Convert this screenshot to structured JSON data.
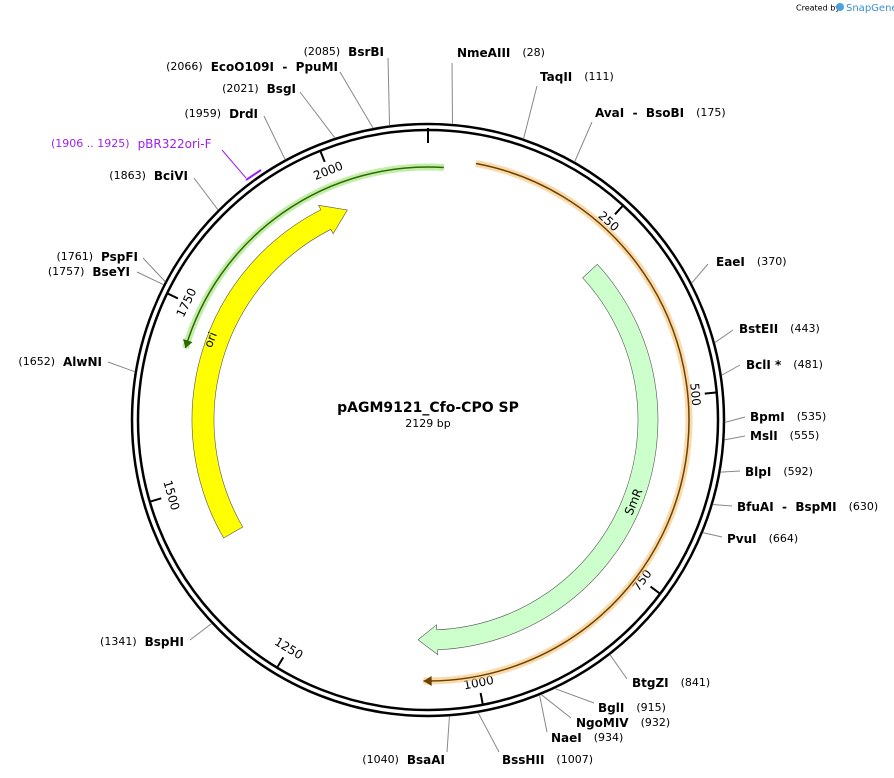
{
  "logo": {
    "prefix": "Created by",
    "brand": "SnapGene"
  },
  "map": {
    "title": "pAGM9121_Cfo-CPO SP",
    "size_label": "2129 bp",
    "size": 2129,
    "ticks": [
      250,
      500,
      750,
      1000,
      1250,
      1500,
      1750,
      2000
    ],
    "enzymes": [
      {
        "name": "NmeAIII",
        "position": 28,
        "label": "(28)"
      },
      {
        "name": "TaqII",
        "position": 111,
        "label": "(111)"
      },
      {
        "name": "AvaI  -  BsoBI",
        "position": 175,
        "label": "(175)"
      },
      {
        "name": "EaeI",
        "position": 370,
        "label": "(370)"
      },
      {
        "name": "BstEII",
        "position": 443,
        "label": "(443)"
      },
      {
        "name": "BclI *",
        "position": 481,
        "label": "(481)"
      },
      {
        "name": "BpmI",
        "position": 535,
        "label": "(535)"
      },
      {
        "name": "MslI",
        "position": 555,
        "label": "(555)"
      },
      {
        "name": "BlpI",
        "position": 592,
        "label": "(592)"
      },
      {
        "name": "BfuAI  -  BspMI",
        "position": 630,
        "label": "(630)"
      },
      {
        "name": "PvuI",
        "position": 664,
        "label": "(664)"
      },
      {
        "name": "BtgZI",
        "position": 841,
        "label": "(841)"
      },
      {
        "name": "BglI",
        "position": 915,
        "label": "(915)"
      },
      {
        "name": "NgoMIV",
        "position": 932,
        "label": "(932)"
      },
      {
        "name": "NaeI",
        "position": 934,
        "label": "(934)"
      },
      {
        "name": "BssHII",
        "position": 1007,
        "label": "(1007)"
      },
      {
        "name": "BsaAI",
        "position": 1040,
        "label": "(1040)"
      },
      {
        "name": "BspHI",
        "position": 1341,
        "label": "(1341)"
      },
      {
        "name": "AlwNI",
        "position": 1652,
        "label": "(1652)"
      },
      {
        "name": "BseYI",
        "position": 1757,
        "label": "(1757)"
      },
      {
        "name": "PspFI",
        "position": 1761,
        "label": "(1761)"
      },
      {
        "name": "BciVI",
        "position": 1863,
        "label": "(1863)"
      },
      {
        "name": "DrdI",
        "position": 1959,
        "label": "(1959)"
      },
      {
        "name": "BsgI",
        "position": 2021,
        "label": "(2021)"
      },
      {
        "name": "EcoO109I  -  PpuMI",
        "position": 2066,
        "label": "(2066)"
      },
      {
        "name": "BsrBI",
        "position": 2085,
        "label": "(2085)"
      }
    ],
    "features": [
      {
        "name": "ori"
      },
      {
        "name": "SmR"
      }
    ],
    "primer": {
      "name": "pBR322ori-F",
      "range": "(1906 .. 1925)"
    }
  }
}
